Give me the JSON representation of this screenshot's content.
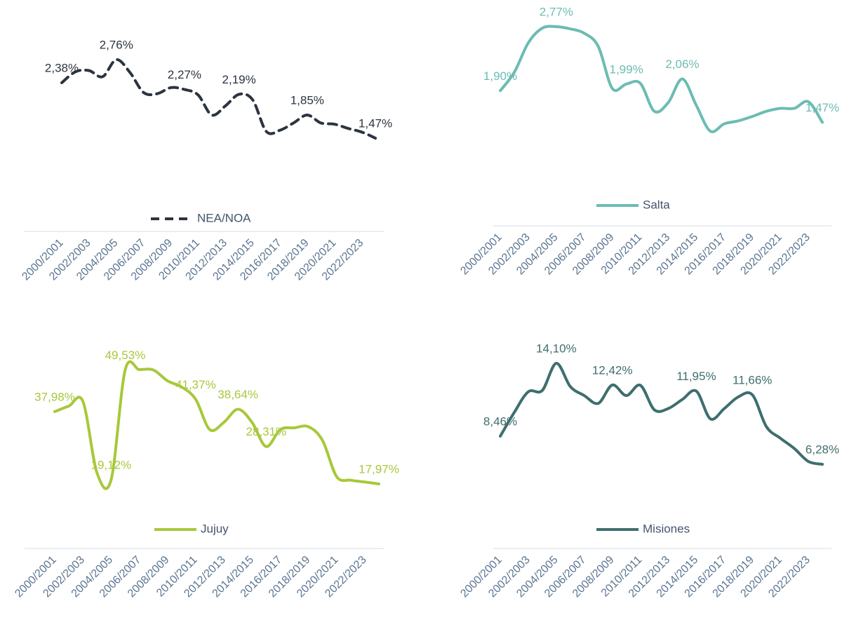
{
  "chart_data": [
    {
      "type": "line",
      "legend": "bottom",
      "categories": [
        "2000/2001",
        null,
        "2002/2003",
        null,
        "2004/2005",
        null,
        "2006/2007",
        null,
        "2008/2009",
        null,
        "2010/2011",
        null,
        "2012/2013",
        null,
        "2014/2015",
        null,
        "2016/2017",
        null,
        "2018/2019",
        null,
        "2020/2021",
        null,
        "2022/2023",
        null
      ],
      "series": [
        {
          "name": "NEA/NOA",
          "color": "#2c3440",
          "line_style": "dashed",
          "values": [
            2.38,
            2.56,
            2.58,
            2.48,
            2.76,
            2.55,
            2.22,
            2.2,
            2.3,
            2.27,
            2.18,
            1.85,
            2.0,
            2.19,
            2.1,
            1.58,
            1.6,
            1.72,
            1.85,
            1.72,
            1.7,
            1.63,
            1.57,
            1.47
          ],
          "value_labels": [
            "2,38%",
            null,
            null,
            null,
            "2,76%",
            null,
            null,
            null,
            null,
            "2,27%",
            null,
            null,
            null,
            "2,19%",
            null,
            null,
            null,
            null,
            "1,85%",
            null,
            null,
            null,
            null,
            "1,47%"
          ]
        }
      ]
    },
    {
      "type": "line",
      "legend": "bottom",
      "categories": [
        "2000/2001",
        null,
        "2002/2003",
        null,
        "2004/2005",
        null,
        "2006/2007",
        null,
        "2008/2009",
        null,
        "2010/2011",
        null,
        "2012/2013",
        null,
        "2014/2015",
        null,
        "2016/2017",
        null,
        "2018/2019",
        null,
        "2020/2021",
        null,
        "2022/2023",
        null
      ],
      "series": [
        {
          "name": "Salta",
          "color": "#6cbcb2",
          "line_style": "solid",
          "values": [
            1.9,
            2.15,
            2.55,
            2.75,
            2.77,
            2.74,
            2.68,
            2.5,
            1.93,
            1.99,
            2.0,
            1.62,
            1.74,
            2.06,
            1.7,
            1.35,
            1.45,
            1.49,
            1.55,
            1.62,
            1.66,
            1.66,
            1.75,
            1.47
          ],
          "value_labels": [
            "1,90%",
            null,
            null,
            null,
            "2,77%",
            null,
            null,
            null,
            null,
            "1,99%",
            null,
            null,
            null,
            "2,06%",
            null,
            null,
            null,
            null,
            null,
            null,
            null,
            null,
            null,
            "1,47%"
          ]
        }
      ]
    },
    {
      "type": "line",
      "legend": "bottom",
      "categories": [
        "2000/2001",
        null,
        "2002/2003",
        null,
        "2004/2005",
        null,
        "2006/2007",
        null,
        "2008/2009",
        null,
        "2010/2011",
        null,
        "2012/2013",
        null,
        "2014/2015",
        null,
        "2016/2017",
        null,
        "2018/2019",
        null,
        "2020/2021",
        null,
        "2022/2023",
        null
      ],
      "series": [
        {
          "name": "Jujuy",
          "color": "#a8c83a",
          "line_style": "solid",
          "values": [
            37.98,
            39.5,
            40.8,
            21,
            19.12,
            49.53,
            49.6,
            49.5,
            46.5,
            44.8,
            41.37,
            33,
            35,
            38.64,
            35,
            28.31,
            33,
            33.5,
            33.8,
            30,
            20,
            19,
            18.5,
            17.97
          ],
          "value_labels": [
            "37,98%",
            null,
            null,
            null,
            "19,12%",
            "49,53%",
            null,
            null,
            null,
            null,
            "41,37%",
            null,
            null,
            "38,64%",
            null,
            "28,31%",
            null,
            null,
            null,
            null,
            null,
            null,
            null,
            "17,97%"
          ]
        }
      ]
    },
    {
      "type": "line",
      "legend": "bottom",
      "categories": [
        "2000/2001",
        null,
        "2002/2003",
        null,
        "2004/2005",
        null,
        "2006/2007",
        null,
        "2008/2009",
        null,
        "2010/2011",
        null,
        "2012/2013",
        null,
        "2014/2015",
        null,
        "2016/2017",
        null,
        "2018/2019",
        null,
        "2020/2021",
        null,
        "2022/2023",
        null
      ],
      "series": [
        {
          "name": "Misiones",
          "color": "#3f6e6e",
          "line_style": "solid",
          "values": [
            8.46,
            10.3,
            11.9,
            12.0,
            14.1,
            12.3,
            11.6,
            11.0,
            12.42,
            11.6,
            12.4,
            10.5,
            10.6,
            11.3,
            11.95,
            9.8,
            10.6,
            11.5,
            11.66,
            9.2,
            8.3,
            7.5,
            6.5,
            6.28
          ],
          "value_labels": [
            "8,46%",
            null,
            null,
            null,
            "14,10%",
            null,
            null,
            null,
            "12,42%",
            null,
            null,
            null,
            null,
            null,
            "11,95%",
            null,
            null,
            null,
            "11,66%",
            null,
            null,
            null,
            null,
            "6,28%"
          ]
        }
      ]
    }
  ]
}
